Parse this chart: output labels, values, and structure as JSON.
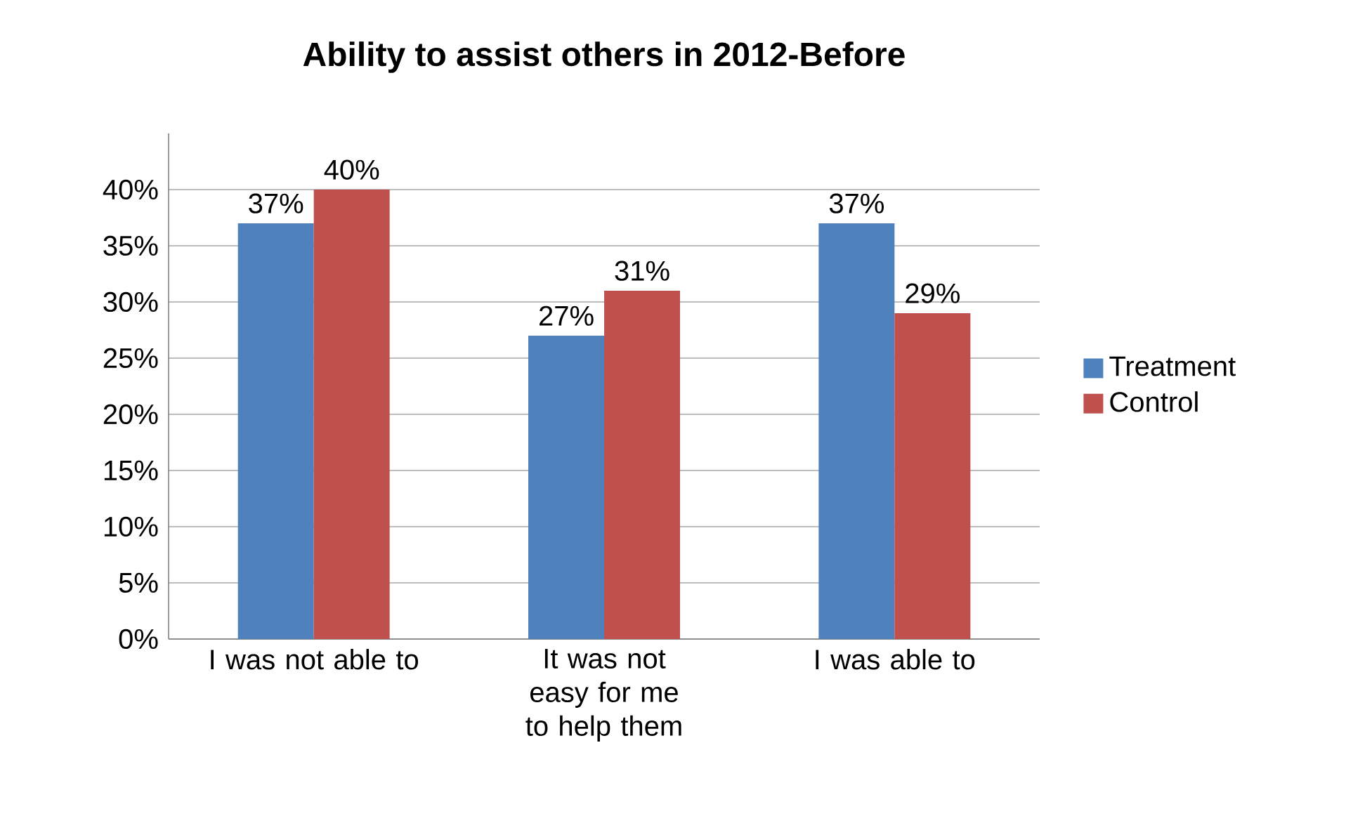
{
  "chart_data": {
    "type": "bar",
    "title": "Ability to assist others in 2012-Before",
    "categories": [
      "I was not able to",
      "It was not easy for me to help them",
      "I was able to"
    ],
    "series": [
      {
        "name": "Treatment",
        "color": "#4f81bd",
        "values": [
          37,
          27,
          37
        ],
        "value_labels": [
          "37%",
          "27%",
          "37%"
        ]
      },
      {
        "name": "Control",
        "color": "#c0504d",
        "values": [
          40,
          31,
          29
        ],
        "value_labels": [
          "40%",
          "31%",
          "29%"
        ]
      }
    ],
    "ylim": [
      0,
      45
    ],
    "yticks": [
      {
        "value": 0,
        "label": "0%"
      },
      {
        "value": 5,
        "label": "5%"
      },
      {
        "value": 10,
        "label": "10%"
      },
      {
        "value": 15,
        "label": "15%"
      },
      {
        "value": 20,
        "label": "20%"
      },
      {
        "value": 25,
        "label": "25%"
      },
      {
        "value": 30,
        "label": "30%"
      },
      {
        "value": 35,
        "label": "35%"
      },
      {
        "value": 40,
        "label": "40%"
      }
    ],
    "grid": "y",
    "legend": "right"
  }
}
